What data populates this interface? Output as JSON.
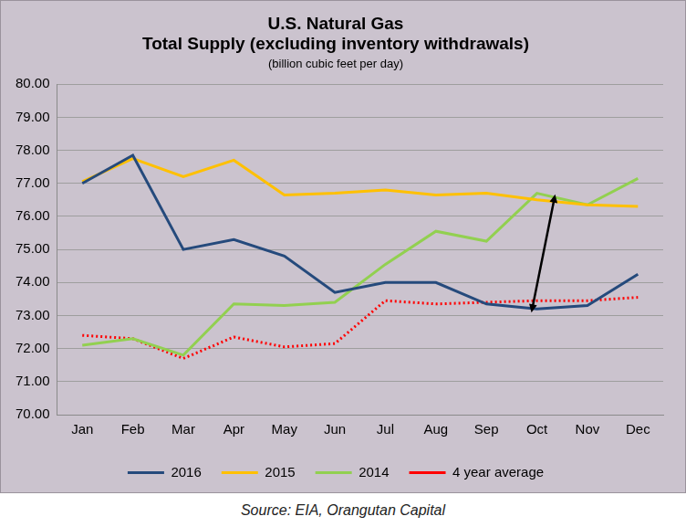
{
  "chart_data": {
    "type": "line",
    "title": [
      "U.S. Natural Gas",
      "Total Supply (excluding inventory withdrawals)"
    ],
    "subtitle": "(billion cubic feet per day)",
    "source": "Source: EIA, Orangutan Capital",
    "categories": [
      "Jan",
      "Feb",
      "Mar",
      "Apr",
      "May",
      "Jun",
      "Jul",
      "Aug",
      "Sep",
      "Oct",
      "Nov",
      "Dec"
    ],
    "series": [
      {
        "name": "2016",
        "color": "#254a7c",
        "line_style": "solid",
        "marker": "none",
        "values": [
          77.0,
          77.85,
          75.0,
          75.3,
          74.8,
          73.7,
          74.0,
          74.0,
          73.35,
          73.2,
          73.3,
          74.25
        ]
      },
      {
        "name": "2015",
        "color": "#ffc000",
        "line_style": "solid",
        "marker": "none",
        "values": [
          77.05,
          77.75,
          77.2,
          77.7,
          76.65,
          76.7,
          76.8,
          76.65,
          76.7,
          76.5,
          76.35,
          76.3
        ]
      },
      {
        "name": "2014",
        "color": "#92d050",
        "line_style": "solid",
        "marker": "none",
        "values": [
          72.1,
          72.3,
          71.8,
          73.35,
          73.3,
          73.4,
          74.55,
          75.55,
          75.25,
          76.7,
          76.35,
          77.15
        ]
      },
      {
        "name": "4 year average",
        "color": "#ff0000",
        "line_style": "dotted",
        "marker": "none",
        "values": [
          72.4,
          72.3,
          71.7,
          72.35,
          72.05,
          72.15,
          73.45,
          73.35,
          73.4,
          73.45,
          73.45,
          73.55
        ]
      }
    ],
    "ylim": [
      70,
      80
    ],
    "yticks": [
      {
        "value": 70,
        "label": "70.00"
      },
      {
        "value": 71,
        "label": "71.00"
      },
      {
        "value": 72,
        "label": "72.00"
      },
      {
        "value": 73,
        "label": "73.00"
      },
      {
        "value": 74,
        "label": "74.00"
      },
      {
        "value": 75,
        "label": "75.00"
      },
      {
        "value": 76,
        "label": "76.00"
      },
      {
        "value": 77,
        "label": "77.00"
      },
      {
        "value": 78,
        "label": "78.00"
      },
      {
        "value": 79,
        "label": "79.00"
      },
      {
        "value": 80,
        "label": "80.00"
      }
    ],
    "grid": true,
    "legend": "bottom"
  }
}
